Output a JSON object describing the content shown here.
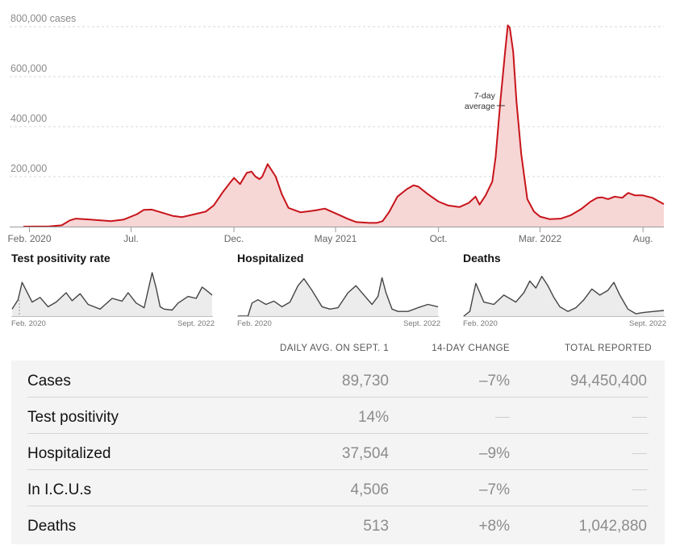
{
  "chart_data": [
    {
      "type": "area",
      "title": "",
      "ylabel_unit": "cases",
      "ylim": [
        0,
        840000
      ],
      "yticks": [
        200000,
        400000,
        600000,
        800000
      ],
      "ytick_labels": [
        "200,000",
        "400,000",
        "600,000",
        "800,000 cases"
      ],
      "xlim": [
        "2020-01-23",
        "2022-09-01"
      ],
      "xticks": [
        {
          "date": "2020-02-01",
          "label": "Feb. 2020"
        },
        {
          "date": "2020-07-01",
          "label": "Jul."
        },
        {
          "date": "2020-12-01",
          "label": "Dec."
        },
        {
          "date": "2021-05-01",
          "label": "May 2021"
        },
        {
          "date": "2021-10-01",
          "label": "Oct."
        },
        {
          "date": "2022-03-01",
          "label": "Mar. 2022"
        },
        {
          "date": "2022-08-01",
          "label": "Aug."
        }
      ],
      "grid": true,
      "annotation": {
        "lines": [
          "7-day",
          "average"
        ],
        "date": "2022-01-10",
        "value": 600000
      },
      "color": "#c7141a",
      "fill": "#f7d6d6",
      "series": [
        {
          "x": [
            "2020-01-23",
            "2020-03-01",
            "2020-03-20",
            "2020-04-01",
            "2020-04-10",
            "2020-05-01",
            "2020-06-01",
            "2020-06-20",
            "2020-07-10",
            "2020-07-20",
            "2020-08-01",
            "2020-09-01",
            "2020-09-15",
            "2020-10-01",
            "2020-10-20",
            "2020-11-01",
            "2020-11-15",
            "2020-11-25",
            "2020-12-01",
            "2020-12-10",
            "2020-12-20",
            "2020-12-27",
            "2021-01-02",
            "2021-01-08",
            "2021-01-12",
            "2021-01-20",
            "2021-02-01",
            "2021-02-10",
            "2021-02-20",
            "2021-03-10",
            "2021-04-01",
            "2021-04-15",
            "2021-05-01",
            "2021-05-20",
            "2021-06-01",
            "2021-06-20",
            "2021-07-01",
            "2021-07-10",
            "2021-07-20",
            "2021-08-01",
            "2021-08-15",
            "2021-08-25",
            "2021-09-01",
            "2021-09-15",
            "2021-10-01",
            "2021-10-15",
            "2021-11-01",
            "2021-11-15",
            "2021-11-25",
            "2021-12-01",
            "2021-12-10",
            "2021-12-20",
            "2021-12-25",
            "2022-01-01",
            "2022-01-08",
            "2022-01-12",
            "2022-01-15",
            "2022-01-20",
            "2022-01-25",
            "2022-02-01",
            "2022-02-10",
            "2022-02-20",
            "2022-03-01",
            "2022-03-15",
            "2022-04-01",
            "2022-04-15",
            "2022-05-01",
            "2022-05-15",
            "2022-05-25",
            "2022-06-01",
            "2022-06-10",
            "2022-06-20",
            "2022-07-01",
            "2022-07-10",
            "2022-07-20",
            "2022-08-01",
            "2022-08-15",
            "2022-08-25",
            "2022-09-01"
          ],
          "values": [
            0,
            500,
            5000,
            25000,
            32000,
            28000,
            22000,
            28000,
            50000,
            67000,
            68000,
            43000,
            38000,
            48000,
            60000,
            85000,
            140000,
            175000,
            195000,
            170000,
            215000,
            220000,
            200000,
            190000,
            200000,
            250000,
            200000,
            130000,
            75000,
            57000,
            65000,
            72000,
            53000,
            30000,
            18000,
            15000,
            15000,
            22000,
            60000,
            120000,
            150000,
            165000,
            160000,
            130000,
            100000,
            85000,
            78000,
            95000,
            120000,
            88000,
            125000,
            180000,
            280000,
            500000,
            700000,
            805000,
            795000,
            700000,
            500000,
            290000,
            110000,
            60000,
            40000,
            30000,
            32000,
            45000,
            70000,
            100000,
            115000,
            117000,
            110000,
            120000,
            115000,
            135000,
            125000,
            125000,
            115000,
            100000,
            90000
          ]
        }
      ]
    },
    {
      "type": "area",
      "title": "Test positivity rate",
      "x_start_label": "Feb. 2020",
      "x_end_label": "Sept. 2022",
      "x": [
        0,
        0.03,
        0.05,
        0.1,
        0.14,
        0.18,
        0.22,
        0.27,
        0.3,
        0.34,
        0.38,
        0.44,
        0.5,
        0.55,
        0.58,
        0.62,
        0.66,
        0.7,
        0.72,
        0.74,
        0.76,
        0.8,
        0.83,
        0.88,
        0.92,
        0.95,
        0.98,
        1
      ],
      "values": [
        0.15,
        0.35,
        0.72,
        0.3,
        0.4,
        0.2,
        0.3,
        0.5,
        0.33,
        0.48,
        0.25,
        0.15,
        0.38,
        0.32,
        0.5,
        0.28,
        0.18,
        0.93,
        0.6,
        0.2,
        0.15,
        0.13,
        0.28,
        0.42,
        0.38,
        0.62,
        0.52,
        0.45
      ]
    },
    {
      "type": "area",
      "title": "Hospitalized",
      "x_start_label": "Feb. 2020",
      "x_end_label": "Sept. 2022",
      "x": [
        0,
        0.05,
        0.07,
        0.1,
        0.14,
        0.18,
        0.22,
        0.26,
        0.3,
        0.33,
        0.37,
        0.42,
        0.46,
        0.5,
        0.55,
        0.59,
        0.63,
        0.67,
        0.7,
        0.72,
        0.74,
        0.77,
        0.8,
        0.85,
        0.9,
        0.95,
        1
      ],
      "values": [
        0,
        0,
        0.28,
        0.35,
        0.25,
        0.32,
        0.2,
        0.3,
        0.65,
        0.8,
        0.55,
        0.2,
        0.15,
        0.18,
        0.5,
        0.65,
        0.45,
        0.25,
        0.42,
        0.82,
        0.5,
        0.15,
        0.1,
        0.1,
        0.18,
        0.25,
        0.2
      ]
    },
    {
      "type": "area",
      "title": "Deaths",
      "x_start_label": "Feb. 2020",
      "x_end_label": "Sept. 2022",
      "x": [
        0,
        0.03,
        0.06,
        0.1,
        0.15,
        0.2,
        0.26,
        0.3,
        0.33,
        0.36,
        0.39,
        0.42,
        0.45,
        0.48,
        0.52,
        0.56,
        0.6,
        0.64,
        0.68,
        0.72,
        0.75,
        0.78,
        0.82,
        0.86,
        0.9,
        0.95,
        1
      ],
      "values": [
        0,
        0.1,
        0.7,
        0.3,
        0.25,
        0.45,
        0.3,
        0.5,
        0.75,
        0.6,
        0.85,
        0.65,
        0.4,
        0.2,
        0.1,
        0.18,
        0.35,
        0.58,
        0.45,
        0.55,
        0.72,
        0.45,
        0.15,
        0.05,
        0.08,
        0.1,
        0.12
      ]
    }
  ],
  "table": {
    "headers": {
      "daily": "DAILY AVG. ON SEPT. 1",
      "change": "14-DAY CHANGE",
      "total": "TOTAL REPORTED"
    },
    "rows": [
      {
        "metric": "Cases",
        "daily": "89,730",
        "change": "–7%",
        "total": "94,450,400"
      },
      {
        "metric": "Test positivity",
        "daily": "14%",
        "change": "",
        "total": ""
      },
      {
        "metric": "Hospitalized",
        "daily": "37,504",
        "change": "–9%",
        "total": ""
      },
      {
        "metric": "In I.C.U.s",
        "daily": "4,506",
        "change": "–7%",
        "total": ""
      },
      {
        "metric": "Deaths",
        "daily": "513",
        "change": "+8%",
        "total": "1,042,880"
      }
    ]
  }
}
